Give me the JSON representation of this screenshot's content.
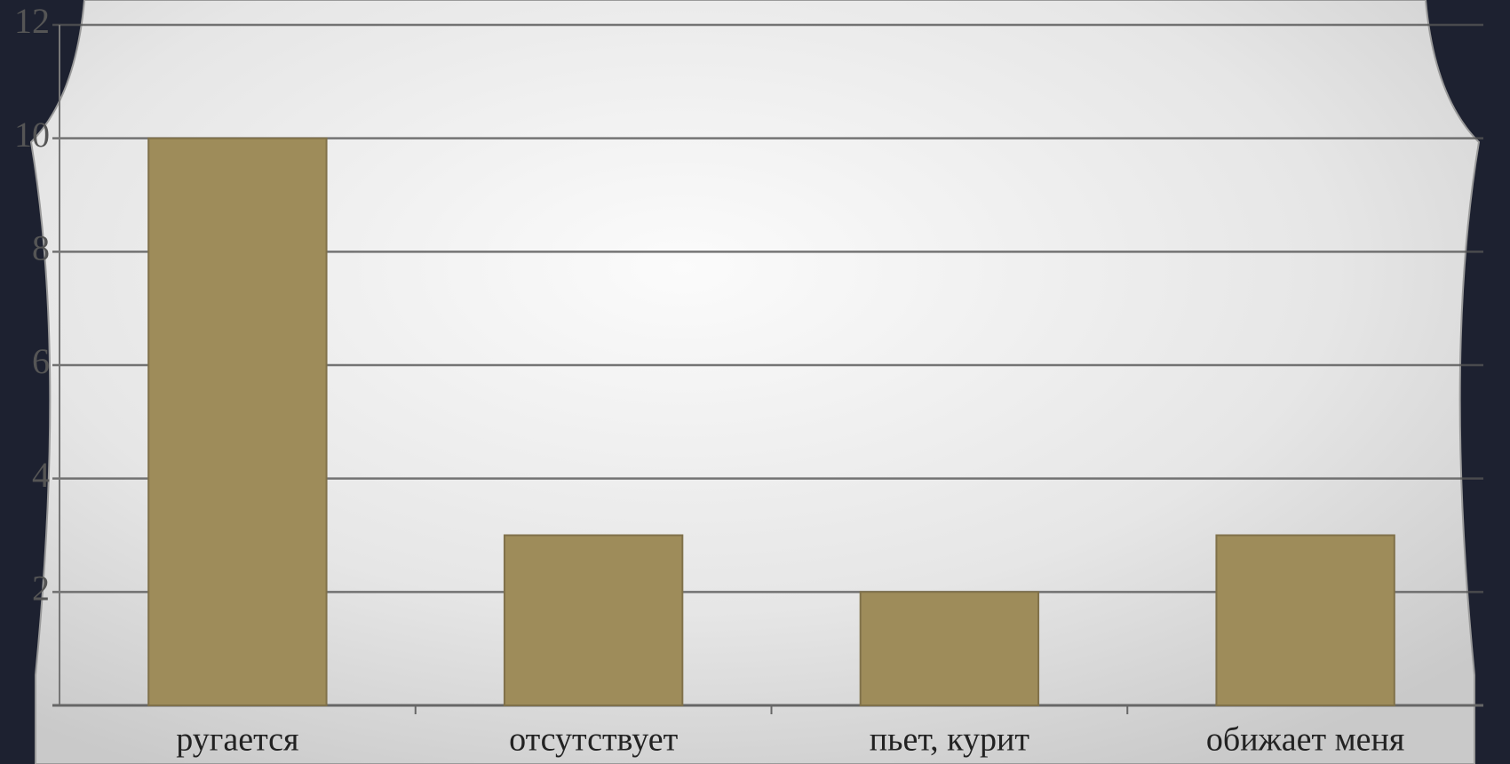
{
  "chart_data": {
    "type": "bar",
    "categories": [
      "ругается",
      "отсутствует",
      "пьет, курит",
      "обижает меня"
    ],
    "values": [
      10,
      3,
      2,
      3
    ],
    "color": "#9e8c5a",
    "ylim": [
      0,
      12
    ],
    "yticks": [
      2,
      4,
      6,
      8,
      10,
      12
    ],
    "grid": true
  }
}
